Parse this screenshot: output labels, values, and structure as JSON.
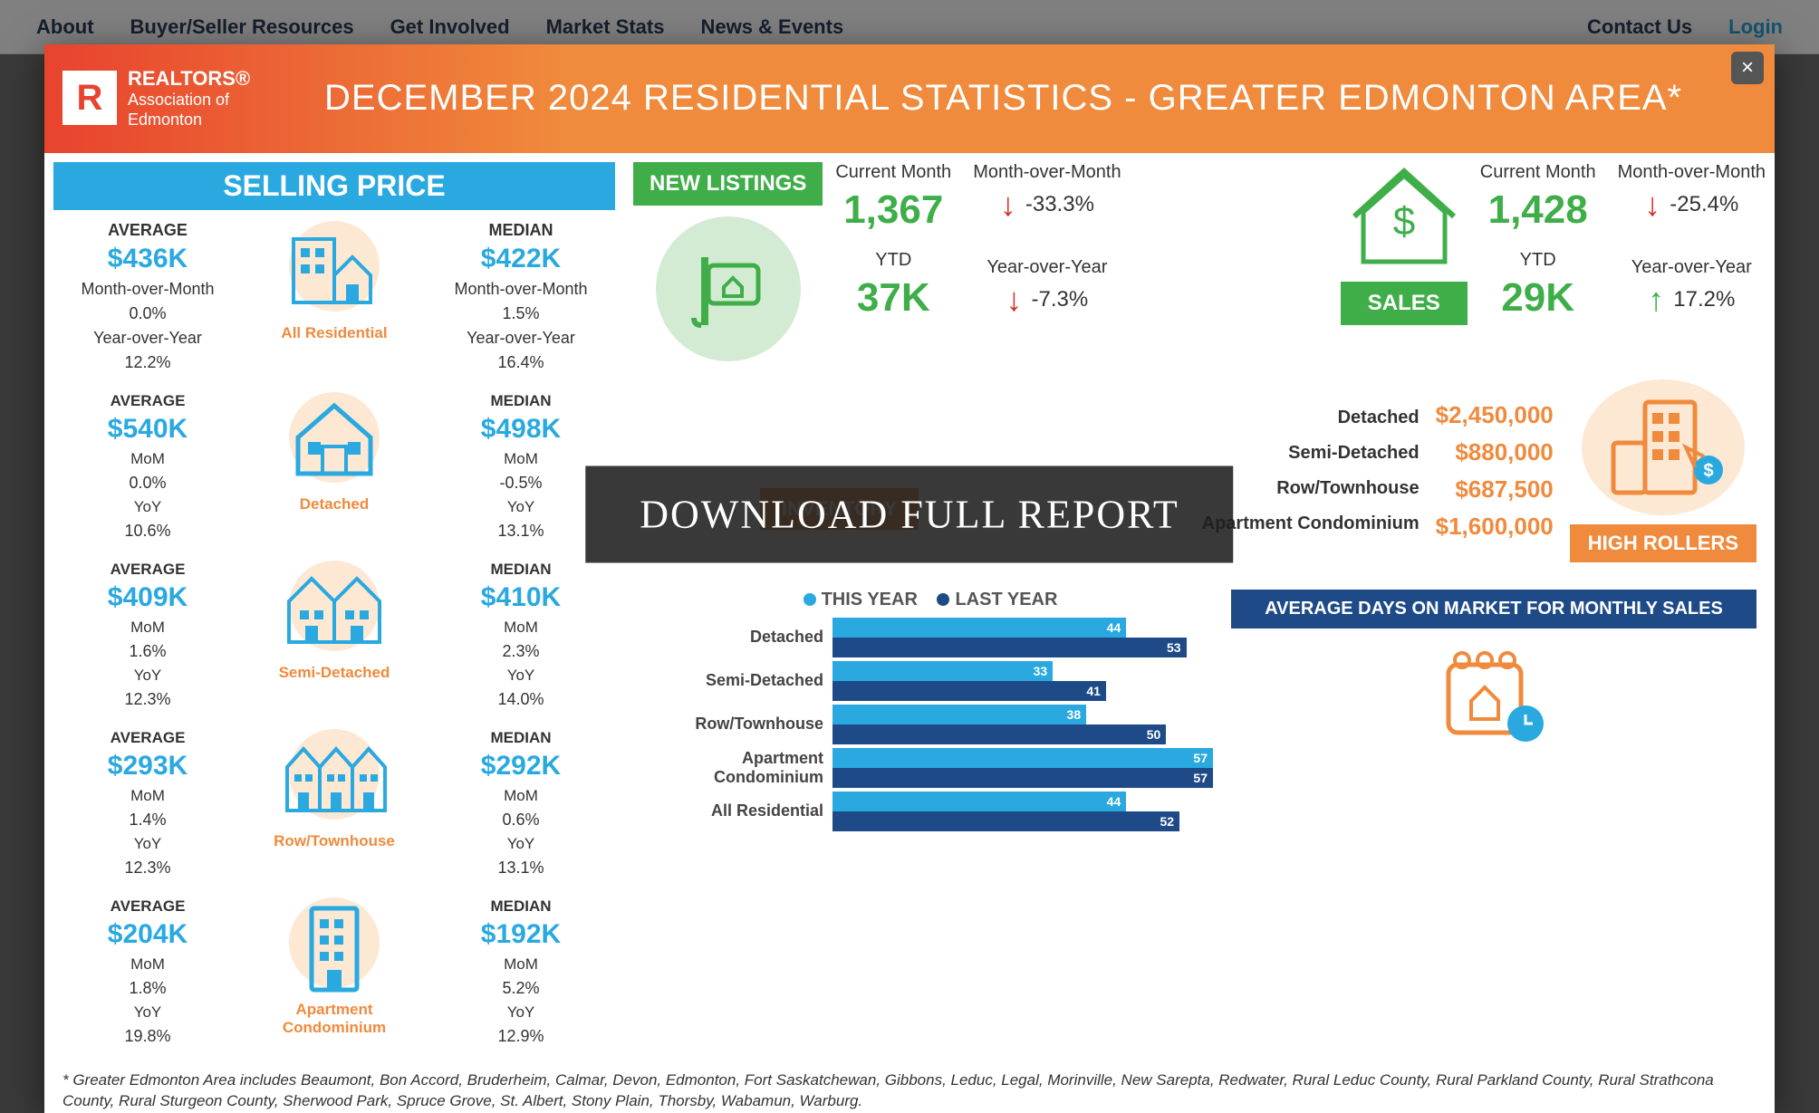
{
  "nav": {
    "items": [
      "About",
      "Buyer/Seller Resources",
      "Get Involved",
      "Market Stats",
      "News & Events"
    ],
    "contact": "Contact Us",
    "login": "Login"
  },
  "header": {
    "brand": "REALTORS®",
    "org1": "Association of",
    "org2": "Edmonton",
    "title": "DECEMBER 2024 RESIDENTIAL STATISTICS - GREATER EDMONTON AREA*"
  },
  "close_label": "×",
  "download_overlay": "DOWNLOAD FULL REPORT",
  "selling_price": {
    "title": "SELLING PRICE",
    "groups": [
      {
        "type": "All Residential",
        "avg_label": "AVERAGE",
        "avg_val": "$436K",
        "mom_lbl_long": "Month-over-Month",
        "avg_mom": "0.0%",
        "yoy_lbl_long": "Year-over-Year",
        "avg_yoy": "12.2%",
        "med_label": "MEDIAN",
        "med_val": "$422K",
        "med_mom": "1.5%",
        "med_yoy": "16.4%",
        "icon": "all"
      },
      {
        "type": "Detached",
        "avg_label": "AVERAGE",
        "avg_val": "$540K",
        "avg_mom": "0.0%",
        "avg_yoy": "10.6%",
        "med_label": "MEDIAN",
        "med_val": "$498K",
        "med_mom": "-0.5%",
        "med_yoy": "13.1%",
        "mom_lbl": "MoM",
        "yoy_lbl": "YoY",
        "icon": "detached"
      },
      {
        "type": "Semi-Detached",
        "avg_label": "AVERAGE",
        "avg_val": "$409K",
        "avg_mom": "1.6%",
        "avg_yoy": "12.3%",
        "med_label": "MEDIAN",
        "med_val": "$410K",
        "med_mom": "2.3%",
        "med_yoy": "14.0%",
        "mom_lbl": "MoM",
        "yoy_lbl": "YoY",
        "icon": "semi"
      },
      {
        "type": "Row/Townhouse",
        "avg_label": "AVERAGE",
        "avg_val": "$293K",
        "avg_mom": "1.4%",
        "avg_yoy": "12.3%",
        "med_label": "MEDIAN",
        "med_val": "$292K",
        "med_mom": "0.6%",
        "med_yoy": "13.1%",
        "mom_lbl": "MoM",
        "yoy_lbl": "YoY",
        "icon": "row"
      },
      {
        "type": "Apartment Condominium",
        "avg_label": "AVERAGE",
        "avg_val": "$204K",
        "avg_mom": "1.8%",
        "avg_yoy": "19.8%",
        "med_label": "MEDIAN",
        "med_val": "$192K",
        "med_mom": "5.2%",
        "med_yoy": "12.9%",
        "mom_lbl": "MoM",
        "yoy_lbl": "YoY",
        "icon": "condo"
      }
    ]
  },
  "new_listings": {
    "badge": "NEW  LISTINGS",
    "cm_label": "Current Month",
    "cm_val": "1,367",
    "mom_label": "Month-over-Month",
    "mom_arrow": "down",
    "mom_pct": "-33.3%",
    "ytd_label": "YTD",
    "ytd_val": "37K",
    "yoy_label": "Year-over-Year",
    "yoy_arrow": "down",
    "yoy_pct": "-7.3%"
  },
  "sales": {
    "badge": "SALES",
    "cm_label": "Current Month",
    "cm_val": "1,428",
    "mom_label": "Month-over-Month",
    "mom_arrow": "down",
    "mom_pct": "-25.4%",
    "ytd_label": "YTD",
    "ytd_val": "29K",
    "yoy_label": "Year-over-Year",
    "yoy_arrow": "up",
    "yoy_pct": "17.2%"
  },
  "inventory_badge": "INVENTORY",
  "high_rollers": {
    "badge": "HIGH ROLLERS",
    "rows": [
      {
        "label": "Detached",
        "value": "$2,450,000"
      },
      {
        "label": "Semi-Detached",
        "value": "$880,000"
      },
      {
        "label": "Row/Townhouse",
        "value": "$687,500"
      },
      {
        "label": "Apartment Condominium",
        "value": "$1,600,000"
      }
    ]
  },
  "dom": {
    "legend_this": "THIS YEAR",
    "legend_last": "LAST YEAR",
    "title": "AVERAGE DAYS ON MARKET FOR MONTHLY SALES",
    "max": 57,
    "colors": {
      "this": "#29a9e0",
      "last": "#1e4b87"
    },
    "rows": [
      {
        "label": "Detached",
        "this": 44,
        "last": 53
      },
      {
        "label": "Semi-Detached",
        "this": 33,
        "last": 41
      },
      {
        "label": "Row/Townhouse",
        "this": 38,
        "last": 50
      },
      {
        "label": "Apartment Condominium",
        "this": 57,
        "last": 57
      },
      {
        "label": "All Residential",
        "this": 44,
        "last": 52
      }
    ]
  },
  "footnote": "* Greater Edmonton Area includes Beaumont, Bon Accord, Bruderheim, Calmar, Devon, Edmonton, Fort Saskatchewan, Gibbons, Leduc, Legal, Morinville, New Sarepta, Redwater, Rural Leduc County, Rural Parkland County, Rural Strathcona County, Rural Sturgeon County, Sherwood Park, Spruce Grove, St. Albert, Stony Plain, Thorsby, Wabamun, Warburg.",
  "colors": {
    "blue": "#29a9e0",
    "navy": "#1e4b87",
    "green": "#3fae49",
    "orange": "#f08a3c",
    "red": "#d32f2f"
  }
}
